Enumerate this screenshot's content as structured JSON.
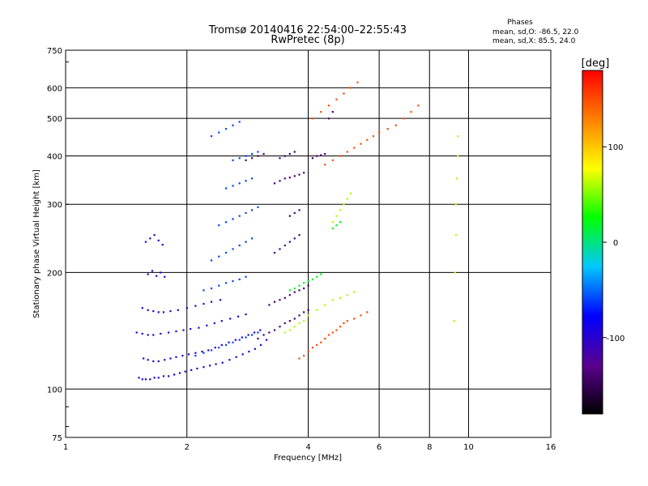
{
  "chart_data": {
    "type": "scatter",
    "title": "Tromsø 20140416 22:54:00–22:55:43",
    "subtitle": "RwPretec (8p)",
    "xlabel": "Frequency [MHz]",
    "ylabel": "Stationary phase Virtual Height [km]",
    "x_scale": "log",
    "y_scale": "log",
    "xlim": [
      1,
      16
    ],
    "ylim": [
      75,
      750
    ],
    "x_ticks": [
      1,
      2,
      4,
      6,
      8,
      10,
      16
    ],
    "x_tick_labels": [
      "1",
      "2",
      "4",
      "6",
      "8",
      "10",
      "16"
    ],
    "y_ticks": [
      75,
      100,
      200,
      300,
      400,
      500,
      600,
      750
    ],
    "y_tick_labels": [
      "75",
      "100",
      "200",
      "300",
      "400",
      "500",
      "600",
      "750"
    ],
    "grid": true,
    "colorbar": {
      "label": "[deg]",
      "range": [
        -180,
        180
      ],
      "ticks": [
        100,
        0,
        -100
      ],
      "tick_labels": [
        "100",
        "0",
        "-100"
      ],
      "colormap": "rainbow",
      "colors": [
        "#000000",
        "#5a0090",
        "#0000ff",
        "#00c8ff",
        "#00ff00",
        "#ffff00",
        "#ff8000",
        "#ff0000"
      ]
    },
    "stats": {
      "heading": "Phases",
      "line1": "mean, sd,O: -86.5, 22.0",
      "line2": "mean, sd,X: 85.5, 24.0"
    },
    "series": [
      {
        "phase": -100,
        "x": [
          1.52,
          1.55,
          1.58,
          1.62,
          1.66,
          1.7,
          1.75,
          1.8,
          1.86,
          1.92,
          1.98,
          2.05,
          2.12,
          2.2,
          2.28,
          2.36,
          2.45,
          2.55,
          2.65,
          2.75,
          2.85,
          2.95,
          3.05,
          3.15,
          1.56,
          1.6,
          1.65,
          1.7,
          1.76,
          1.82,
          1.88,
          1.95,
          2.02,
          2.1,
          2.18,
          2.26,
          2.35,
          2.44,
          2.54,
          2.64,
          2.74,
          2.84,
          2.94,
          3.04,
          1.5,
          1.55,
          1.6,
          1.65,
          1.72,
          1.8,
          1.88,
          1.96,
          2.04,
          2.14,
          2.24,
          2.34,
          2.44,
          2.56,
          2.68,
          2.8,
          1.55,
          1.6,
          1.65,
          1.7,
          1.75,
          1.82,
          1.9,
          2.0,
          2.1,
          2.2,
          2.3,
          2.42,
          1.58,
          1.62,
          1.66,
          1.7,
          1.74,
          1.6,
          1.64,
          1.68,
          1.72,
          1.76
        ],
        "y": [
          107,
          106,
          106,
          106,
          107,
          107,
          108,
          108,
          109,
          110,
          111,
          112,
          113,
          114,
          115,
          116,
          117,
          119,
          121,
          123,
          125,
          127,
          130,
          134,
          120,
          119,
          118,
          118,
          119,
          120,
          121,
          122,
          123,
          124,
          125,
          126,
          128,
          130,
          132,
          134,
          136,
          138,
          140,
          142,
          140,
          139,
          138,
          138,
          139,
          140,
          141,
          142,
          143,
          144,
          146,
          148,
          150,
          152,
          154,
          156,
          162,
          160,
          159,
          158,
          158,
          159,
          160,
          162,
          164,
          166,
          168,
          170,
          240,
          245,
          250,
          242,
          236,
          198,
          202,
          196,
          200,
          195
        ]
      },
      {
        "phase": -140,
        "x": [
          3.0,
          3.1,
          3.2,
          3.3,
          3.4,
          3.5,
          3.6,
          3.7,
          3.8,
          3.9,
          4.0,
          3.2,
          3.3,
          3.4,
          3.5,
          3.6,
          3.7,
          3.8,
          3.9,
          4.0,
          3.3,
          3.4,
          3.5,
          3.6,
          3.7,
          3.8,
          3.3,
          3.4,
          3.5,
          3.6,
          3.7,
          3.8,
          3.9,
          3.4,
          3.5,
          3.6,
          3.7,
          2.8,
          2.9,
          3.0,
          3.1,
          4.1,
          4.2,
          4.3,
          4.4,
          3.6,
          3.7,
          3.8,
          4.5,
          4.6
        ],
        "y": [
          135,
          138,
          140,
          142,
          145,
          148,
          150,
          152,
          155,
          158,
          160,
          165,
          168,
          170,
          172,
          175,
          178,
          180,
          182,
          185,
          225,
          230,
          235,
          240,
          245,
          250,
          340,
          345,
          350,
          352,
          355,
          358,
          362,
          395,
          400,
          405,
          410,
          390,
          395,
          400,
          405,
          395,
          400,
          402,
          405,
          280,
          285,
          290,
          500,
          520
        ]
      },
      {
        "phase": -60,
        "x": [
          2.1,
          2.2,
          2.3,
          2.4,
          2.5,
          2.6,
          2.7,
          2.8,
          2.9,
          3.0,
          2.2,
          2.3,
          2.4,
          2.5,
          2.6,
          2.7,
          2.8,
          2.3,
          2.4,
          2.5,
          2.6,
          2.7,
          2.8,
          2.9,
          2.4,
          2.5,
          2.6,
          2.7,
          2.8,
          2.9,
          3.0,
          2.5,
          2.6,
          2.7,
          2.8,
          2.9,
          2.6,
          2.7,
          2.8,
          2.9,
          3.0,
          2.3,
          2.4,
          2.5,
          2.6,
          2.7
        ],
        "y": [
          122,
          124,
          126,
          128,
          130,
          132,
          134,
          136,
          138,
          140,
          180,
          182,
          185,
          188,
          190,
          192,
          195,
          215,
          220,
          225,
          230,
          235,
          240,
          245,
          265,
          270,
          275,
          280,
          285,
          290,
          295,
          330,
          335,
          340,
          345,
          350,
          390,
          395,
          400,
          405,
          410,
          450,
          460,
          470,
          480,
          490
        ]
      },
      {
        "phase": 150,
        "x": [
          3.8,
          3.9,
          4.0,
          4.1,
          4.2,
          4.3,
          4.4,
          4.5,
          4.6,
          4.7,
          4.8,
          4.9,
          5.0,
          5.2,
          5.4,
          5.6,
          4.1,
          4.3,
          4.5,
          4.7,
          4.9,
          5.1,
          5.3,
          4.4,
          4.6,
          4.8,
          5.0,
          5.2,
          5.4,
          5.6,
          5.8,
          6.0,
          6.3,
          6.6,
          6.9,
          7.2,
          7.5
        ],
        "y": [
          120,
          122,
          125,
          128,
          130,
          132,
          135,
          138,
          140,
          142,
          145,
          148,
          150,
          152,
          155,
          158,
          500,
          520,
          540,
          560,
          580,
          600,
          620,
          380,
          390,
          400,
          410,
          420,
          430,
          440,
          450,
          460,
          470,
          480,
          500,
          520,
          540
        ]
      },
      {
        "phase": 60,
        "x": [
          3.5,
          3.6,
          3.7,
          3.8,
          3.9,
          4.0,
          4.2,
          4.4,
          4.6,
          4.8,
          5.0,
          5.2,
          4.6,
          4.7,
          4.8,
          4.9,
          5.0,
          5.1,
          9.2,
          9.25,
          9.3,
          9.3,
          9.35,
          9.4,
          9.4
        ],
        "y": [
          140,
          142,
          145,
          148,
          150,
          155,
          160,
          165,
          170,
          172,
          175,
          178,
          270,
          280,
          290,
          300,
          310,
          320,
          150,
          200,
          250,
          300,
          350,
          400,
          450
        ]
      },
      {
        "phase": 20,
        "x": [
          3.6,
          3.7,
          3.8,
          3.9,
          4.0,
          4.1,
          4.2,
          4.3,
          4.6,
          4.7,
          4.8
        ],
        "y": [
          180,
          182,
          185,
          188,
          190,
          192,
          195,
          198,
          260,
          265,
          270
        ]
      }
    ]
  }
}
